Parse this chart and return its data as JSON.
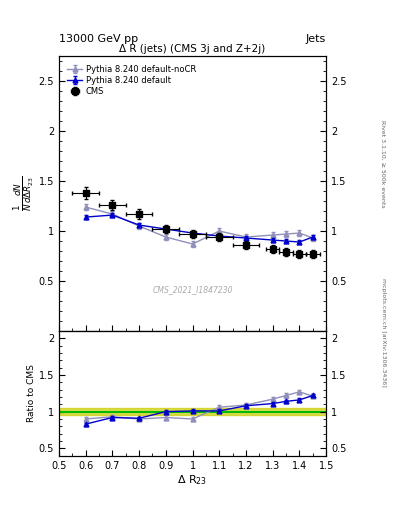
{
  "title_top": "13000 GeV pp",
  "title_right": "Jets",
  "plot_title": "Δ R (jets) (CMS 3j and Z+2j)",
  "watermark": "CMS_2021_I1847230",
  "right_label_top": "Rivet 3.1.10, ≥ 500k events",
  "right_label_bot": "mcplots.cern.ch [arXiv:1306.3436]",
  "xlabel": "Δ R$_{23}$",
  "ylabel_main": "$\\frac{1}{N}\\frac{dN}{d\\Delta R_{23}}$",
  "ylabel_ratio": "Ratio to CMS",
  "xlim": [
    0.5,
    1.5
  ],
  "ylim_main": [
    0.0,
    2.75
  ],
  "ylim_ratio": [
    0.4,
    2.1
  ],
  "yticks_main": [
    0.5,
    1.0,
    1.5,
    2.0,
    2.5
  ],
  "yticks_ratio": [
    0.5,
    1.0,
    1.5,
    2.0
  ],
  "cms_x": [
    0.6,
    0.7,
    0.8,
    0.9,
    1.0,
    1.1,
    1.2,
    1.3,
    1.35,
    1.4,
    1.45
  ],
  "cms_y": [
    1.38,
    1.26,
    1.17,
    1.02,
    0.97,
    0.94,
    0.86,
    0.82,
    0.79,
    0.77,
    0.77
  ],
  "cms_yerr": [
    0.06,
    0.05,
    0.05,
    0.04,
    0.04,
    0.04,
    0.04,
    0.04,
    0.04,
    0.04,
    0.04
  ],
  "cms_xerr": [
    0.05,
    0.05,
    0.05,
    0.05,
    0.05,
    0.05,
    0.05,
    0.025,
    0.025,
    0.025,
    0.025
  ],
  "py_default_x": [
    0.6,
    0.7,
    0.8,
    0.9,
    1.0,
    1.1,
    1.2,
    1.3,
    1.35,
    1.4,
    1.45
  ],
  "py_default_y": [
    1.14,
    1.16,
    1.06,
    1.02,
    0.98,
    0.95,
    0.93,
    0.91,
    0.9,
    0.89,
    0.94
  ],
  "py_default_yerr": [
    0.02,
    0.02,
    0.02,
    0.02,
    0.02,
    0.02,
    0.02,
    0.02,
    0.02,
    0.02,
    0.02
  ],
  "py_nocr_x": [
    0.6,
    0.7,
    0.8,
    0.9,
    1.0,
    1.1,
    1.2,
    1.3,
    1.35,
    1.4,
    1.45
  ],
  "py_nocr_y": [
    1.24,
    1.17,
    1.05,
    0.94,
    0.87,
    1.0,
    0.94,
    0.96,
    0.97,
    0.98,
    0.93
  ],
  "py_nocr_yerr": [
    0.03,
    0.03,
    0.03,
    0.03,
    0.03,
    0.03,
    0.03,
    0.03,
    0.03,
    0.03,
    0.03
  ],
  "ratio_py_default_y": [
    0.83,
    0.92,
    0.91,
    1.0,
    1.01,
    1.01,
    1.08,
    1.11,
    1.14,
    1.16,
    1.22
  ],
  "ratio_py_default_yerr": [
    0.02,
    0.02,
    0.02,
    0.02,
    0.02,
    0.02,
    0.02,
    0.02,
    0.02,
    0.02,
    0.02
  ],
  "ratio_py_nocr_y": [
    0.9,
    0.93,
    0.9,
    0.92,
    0.9,
    1.06,
    1.09,
    1.17,
    1.22,
    1.27,
    1.21
  ],
  "ratio_py_nocr_yerr": [
    0.03,
    0.03,
    0.03,
    0.03,
    0.03,
    0.03,
    0.03,
    0.03,
    0.03,
    0.03,
    0.03
  ],
  "cms_color": "#000000",
  "py_default_color": "#0000cc",
  "py_nocr_color": "#9090bb",
  "green_band_color": "#00bb00",
  "yellow_band_color": "#cccc00",
  "legend_cms": "CMS",
  "legend_py_default": "Pythia 8.240 default",
  "legend_py_nocr": "Pythia 8.240 default-noCR",
  "bg_color": "#ffffff"
}
